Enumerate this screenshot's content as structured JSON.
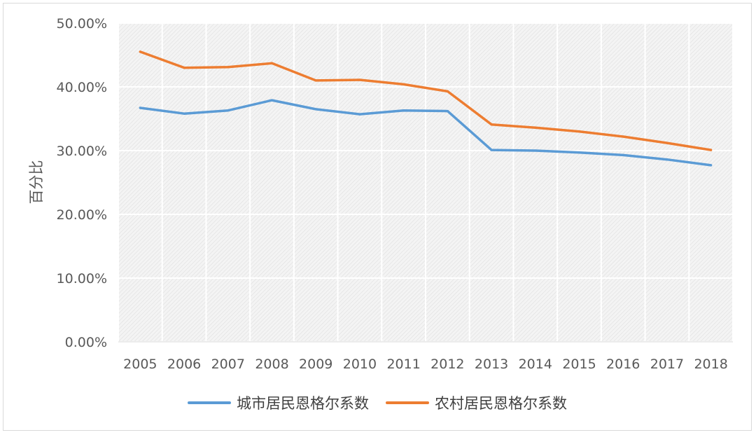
{
  "chart_data": {
    "type": "line",
    "title": "",
    "xlabel": "",
    "ylabel": "百分比",
    "x": [
      "2005",
      "2006",
      "2007",
      "2008",
      "2009",
      "2010",
      "2011",
      "2012",
      "2013",
      "2014",
      "2015",
      "2016",
      "2017",
      "2018"
    ],
    "ylim": [
      0,
      50
    ],
    "y_ticks": [
      "0.00%",
      "10.00%",
      "20.00%",
      "30.00%",
      "40.00%",
      "50.00%"
    ],
    "grid": true,
    "legend_position": "bottom",
    "series": [
      {
        "name": "城市居民恩格尔系数",
        "color": "#5b9bd5",
        "values": [
          36.7,
          35.8,
          36.3,
          37.9,
          36.5,
          35.7,
          36.3,
          36.2,
          30.1,
          30.0,
          29.7,
          29.3,
          28.6,
          27.7
        ]
      },
      {
        "name": "农村居民恩格尔系数",
        "color": "#ed7d31",
        "values": [
          45.5,
          43.0,
          43.1,
          43.7,
          41.0,
          41.1,
          40.4,
          39.3,
          34.1,
          33.6,
          33.0,
          32.2,
          31.2,
          30.1
        ]
      }
    ]
  }
}
